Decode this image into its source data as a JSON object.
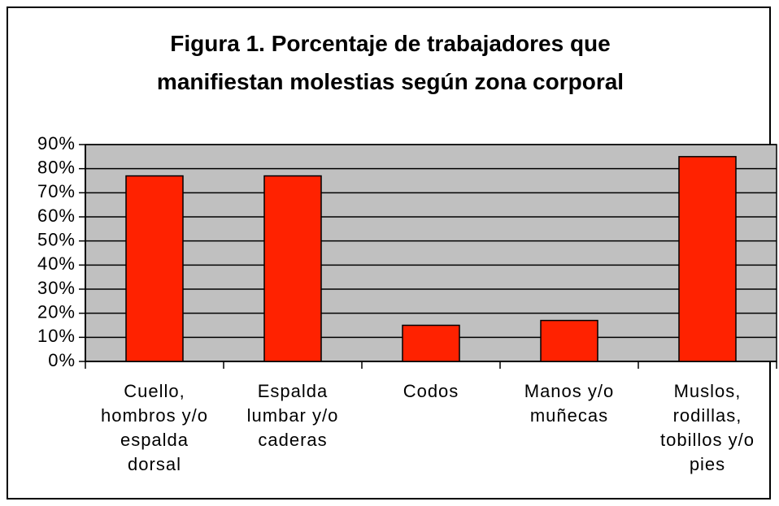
{
  "chart_data": {
    "type": "bar",
    "title": "Figura 1. Porcentaje de trabajadores que manifiestan molestias según zona corporal",
    "categories": [
      "Cuello, hombros y/o espalda dorsal",
      "Espalda lumbar y/o caderas",
      "Codos",
      "Manos y/o muñecas",
      "Muslos, rodillas, tobillos y/o pies"
    ],
    "values": [
      77,
      77,
      15,
      17,
      85
    ],
    "color": "#ff2200",
    "ylim": [
      0,
      90
    ],
    "yticks": [
      {
        "value": 0,
        "label": "0%"
      },
      {
        "value": 10,
        "label": "10%"
      },
      {
        "value": 20,
        "label": "20%"
      },
      {
        "value": 30,
        "label": "30%"
      },
      {
        "value": 40,
        "label": "40%"
      },
      {
        "value": 50,
        "label": "50%"
      },
      {
        "value": 60,
        "label": "60%"
      },
      {
        "value": 70,
        "label": "70%"
      },
      {
        "value": 80,
        "label": "80%"
      },
      {
        "value": 90,
        "label": "90%"
      }
    ],
    "grid": true
  }
}
